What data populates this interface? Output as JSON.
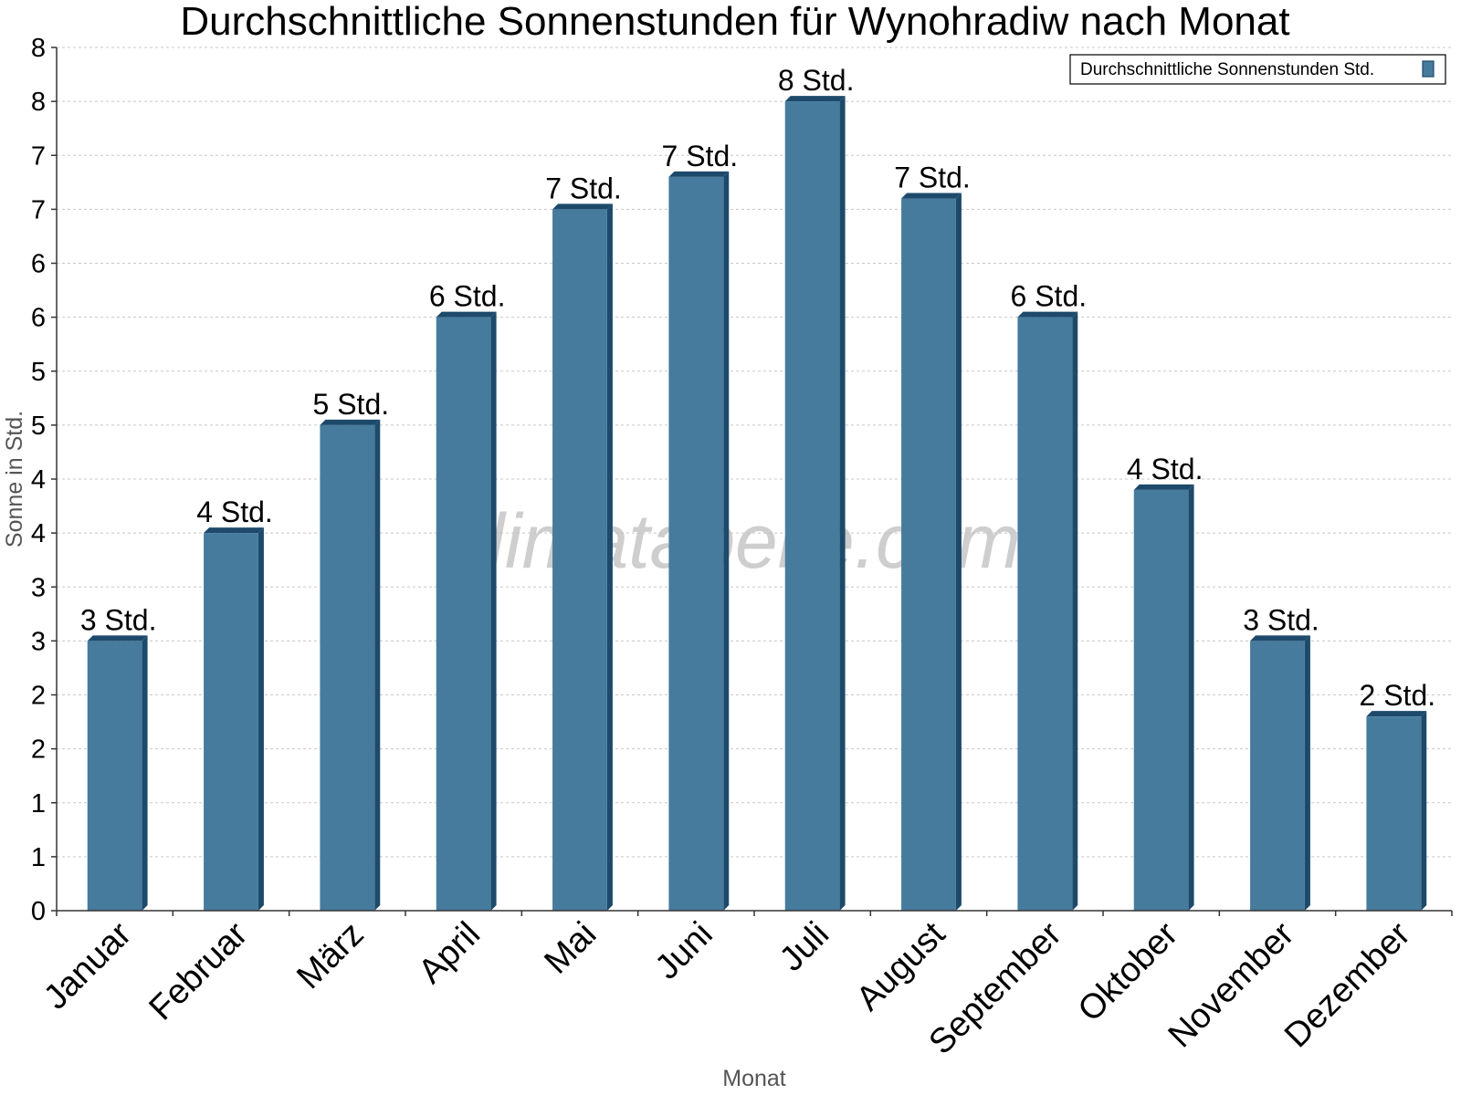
{
  "chart_data": {
    "type": "bar",
    "title": "Durchschnittliche Sonnenstunden für Wynohradiw nach Monat",
    "xlabel": "Monat",
    "ylabel": "Sonne in Std.",
    "categories": [
      "Januar",
      "Februar",
      "März",
      "April",
      "Mai",
      "Juni",
      "Juli",
      "August",
      "September",
      "Oktober",
      "November",
      "Dezember"
    ],
    "series": [
      {
        "name": "Durchschnittliche Sonnenstunden Std.",
        "values": [
          2.5,
          3.5,
          4.5,
          5.5,
          6.5,
          6.8,
          7.5,
          6.6,
          5.5,
          3.9,
          2.5,
          1.8
        ],
        "labels": [
          "3 Std.",
          "4 Std.",
          "5 Std.",
          "6 Std.",
          "7 Std.",
          "7 Std.",
          "8 Std.",
          "7 Std.",
          "6 Std.",
          "4 Std.",
          "3 Std.",
          "2 Std."
        ]
      }
    ],
    "ylim": [
      0,
      8
    ],
    "yticks": [
      0,
      0.5,
      1,
      1.5,
      2,
      2.5,
      3,
      3.5,
      4,
      4.5,
      5,
      5.5,
      6,
      6.5,
      7,
      7.5,
      8
    ],
    "ytick_labels": [
      "0",
      "1",
      "1",
      "2",
      "2",
      "3",
      "3",
      "4",
      "4",
      "5",
      "5",
      "6",
      "6",
      "7",
      "7",
      "8",
      "8"
    ],
    "grid": true,
    "legend_position": "top-right",
    "watermark": "klimatabelle.com",
    "colors": {
      "bar": "#467b9d",
      "bar_dark": "#1d4a6b",
      "grid": "#c8c8c8"
    }
  }
}
